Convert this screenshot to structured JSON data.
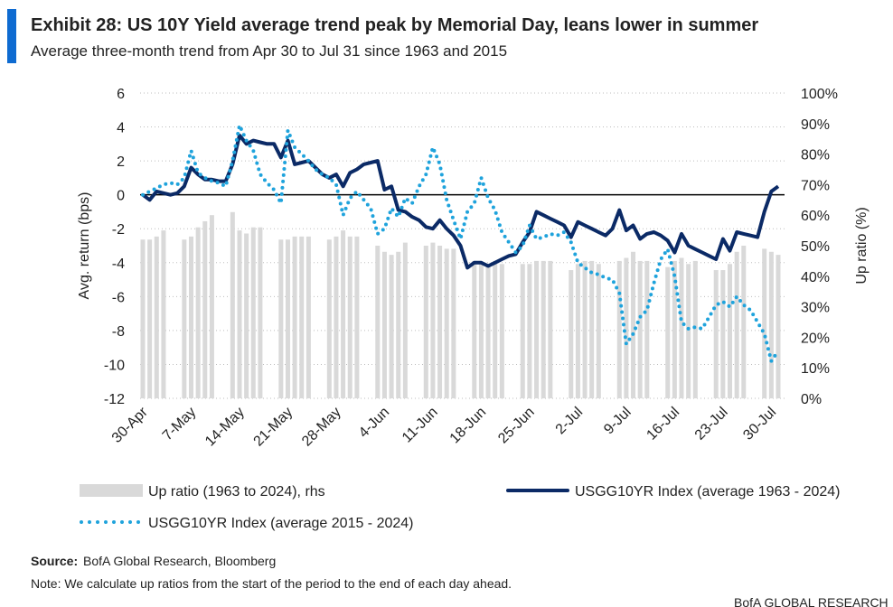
{
  "chart_data": {
    "type": "bar_line",
    "title": "Exhibit 28: US 10Y Yield average trend peak by Memorial Day, leans lower in summer",
    "subtitle": "Average three-month trend from Apr 30 to Jul 31 since 1963 and 2015",
    "y_label": "Avg. return (bps)",
    "y2_label": "Up ratio (%)",
    "source_label": "Source:",
    "source": "BofA Global Research, Bloomberg",
    "note": "Note: We calculate up ratios from the start of the period to the end of each day ahead.",
    "footer": "BofA GLOBAL RESEARCH",
    "categories": [
      "30-Apr",
      null,
      null,
      null,
      null,
      null,
      null,
      "7-May",
      null,
      null,
      null,
      null,
      null,
      null,
      "14-May",
      null,
      null,
      null,
      null,
      null,
      null,
      "21-May",
      null,
      null,
      null,
      null,
      null,
      null,
      "28-May",
      null,
      null,
      null,
      null,
      null,
      null,
      "4-Jun",
      null,
      null,
      null,
      null,
      null,
      null,
      "11-Jun",
      null,
      null,
      null,
      null,
      null,
      null,
      "18-Jun",
      null,
      null,
      null,
      null,
      null,
      null,
      "25-Jun",
      null,
      null,
      null,
      null,
      null,
      null,
      "2-Jul",
      null,
      null,
      null,
      null,
      null,
      null,
      "9-Jul",
      null,
      null,
      null,
      null,
      null,
      null,
      "16-Jul",
      null,
      null,
      null,
      null,
      null,
      null,
      "23-Jul",
      null,
      null,
      null,
      null,
      null,
      null,
      "30-Jul",
      null
    ],
    "ylim": [
      -12,
      6
    ],
    "yticks": [
      -12,
      -10,
      -8,
      -6,
      -4,
      -2,
      0,
      2,
      4,
      6
    ],
    "y2lim": [
      0,
      100
    ],
    "y2ticks": [
      {
        "value": 0,
        "label": "0%"
      },
      {
        "value": 10,
        "label": "10%"
      },
      {
        "value": 20,
        "label": "20%"
      },
      {
        "value": 30,
        "label": "30%"
      },
      {
        "value": 40,
        "label": "40%"
      },
      {
        "value": 50,
        "label": "50%"
      },
      {
        "value": 60,
        "label": "60%"
      },
      {
        "value": 70,
        "label": "70%"
      },
      {
        "value": 80,
        "label": "80%"
      },
      {
        "value": 90,
        "label": "90%"
      },
      {
        "value": 100,
        "label": "100%"
      }
    ],
    "grid": true,
    "series": [
      {
        "name": "Up ratio (1963 to 2024), rhs",
        "kind": "bar",
        "axis": "y2",
        "color": "#d9d9d9",
        "values": [
          52,
          52,
          53,
          55,
          null,
          null,
          52,
          53,
          56,
          58,
          60,
          null,
          null,
          61,
          55,
          54,
          56,
          56,
          null,
          null,
          52,
          52,
          53,
          53,
          53,
          null,
          null,
          52,
          53,
          55,
          53,
          53,
          null,
          null,
          50,
          48,
          47,
          48,
          51,
          null,
          null,
          50,
          51,
          50,
          49,
          49,
          null,
          null,
          45,
          44,
          44,
          45,
          44,
          null,
          null,
          44,
          44,
          45,
          45,
          45,
          null,
          null,
          42,
          44,
          45,
          45,
          44,
          null,
          null,
          45,
          46,
          48,
          45,
          45,
          null,
          null,
          43,
          45,
          46,
          44,
          45,
          null,
          null,
          42,
          42,
          44,
          48,
          50,
          null,
          null,
          49,
          48,
          47
        ]
      },
      {
        "name": "USGG10YR Index (average 1963 - 2024)",
        "kind": "line",
        "color": "#0b2a66",
        "values": [
          0,
          -0.3,
          0.2,
          0.1,
          0,
          0.1,
          0.5,
          1.6,
          1.2,
          0.9,
          0.9,
          0.8,
          0.8,
          1.8,
          3.5,
          3.0,
          3.2,
          3.1,
          3.0,
          3.0,
          2.2,
          3.2,
          1.8,
          1.9,
          2.0,
          1.6,
          1.2,
          1.0,
          1.2,
          0.5,
          1.3,
          1.5,
          1.8,
          1.9,
          2.0,
          0.3,
          0.5,
          -0.9,
          -1.0,
          -1.3,
          -1.5,
          -1.9,
          -2.0,
          -1.5,
          -2.0,
          -2.4,
          -3.0,
          -4.3,
          -4.0,
          -4.0,
          -4.2,
          -4.0,
          -3.8,
          -3.6,
          -3.5,
          -2.8,
          -2.2,
          -1.0,
          -1.2,
          -1.4,
          -1.6,
          -1.8,
          -2.5,
          -1.6,
          -1.8,
          -2.0,
          -2.2,
          -2.4,
          -2.0,
          -0.9,
          -2.1,
          -1.8,
          -2.6,
          -2.3,
          -2.2,
          -2.4,
          -2.7,
          -3.4,
          -2.3,
          -3.0,
          -3.2,
          -3.4,
          -3.6,
          -3.8,
          -2.6,
          -3.3,
          -2.2,
          -2.3,
          -2.4,
          -2.5,
          -1.0,
          0.2,
          0.5
        ]
      },
      {
        "name": "USGG10YR Index (average 2015 - 2024)",
        "kind": "dotted",
        "color": "#1fa3dc",
        "values": [
          0,
          0.2,
          0.4,
          0.6,
          0.7,
          0.6,
          1.0,
          2.6,
          1.3,
          1.0,
          0.8,
          0.7,
          0.5,
          2.0,
          4.1,
          3.2,
          2.6,
          1.2,
          0.7,
          0.3,
          -0.5,
          3.8,
          2.8,
          2.4,
          2.0,
          1.5,
          1.2,
          1.0,
          0.6,
          -1.2,
          -0.2,
          0.2,
          -0.3,
          -0.8,
          -2.3,
          -2.0,
          -0.8,
          -1.3,
          -0.2,
          -0.5,
          0.5,
          1.2,
          2.8,
          1.8,
          -0.3,
          -1.5,
          -2.6,
          -1.0,
          -0.5,
          1.0,
          -0.2,
          -0.9,
          -2.2,
          -2.8,
          -3.4,
          -3.0,
          -1.8,
          -2.6,
          -2.5,
          -2.3,
          -2.4,
          -2.2,
          -2.8,
          -4.0,
          -4.3,
          -4.6,
          -4.7,
          -4.9,
          -5.0,
          -5.8,
          -8.8,
          -8.2,
          -7.2,
          -6.8,
          -5.2,
          -3.8,
          -3.2,
          -4.8,
          -7.5,
          -7.9,
          -7.8,
          -7.9,
          -7.2,
          -6.5,
          -6.3,
          -6.6,
          -6.0,
          -6.5,
          -6.8,
          -7.5,
          -8.2,
          -9.8,
          -9.2
        ]
      }
    ]
  }
}
